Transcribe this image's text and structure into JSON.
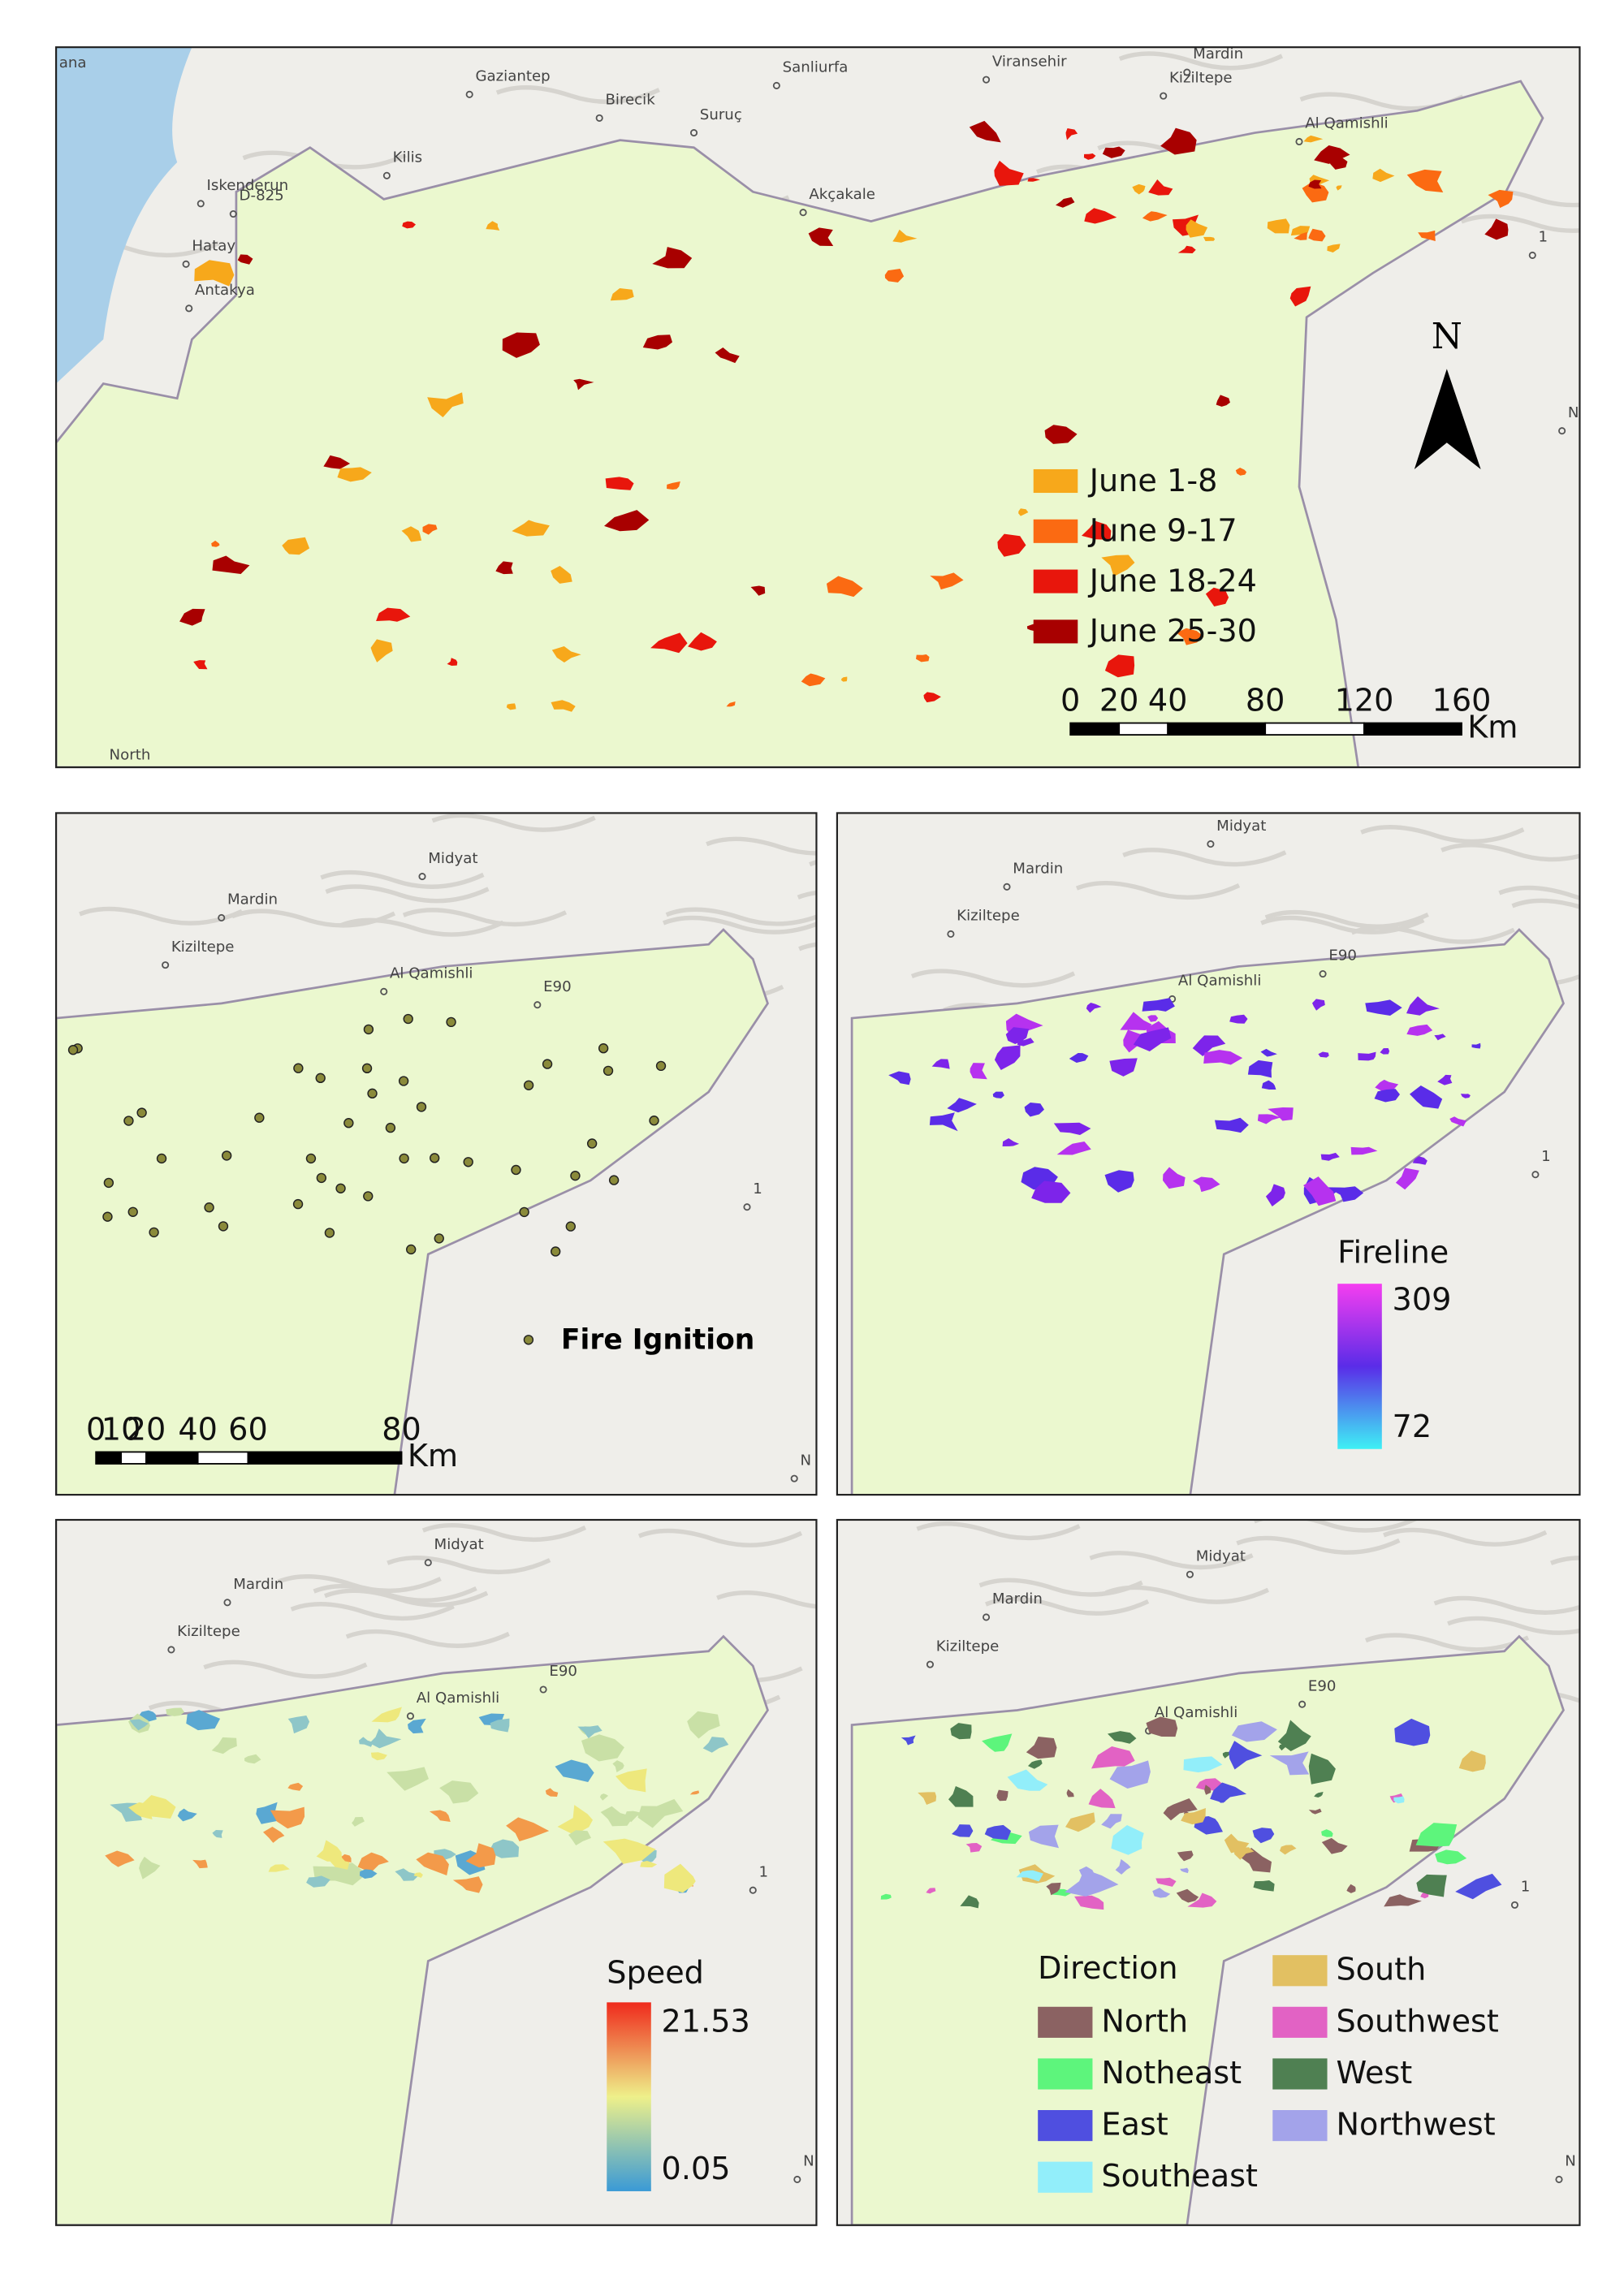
{
  "top_map": {
    "places": [
      "ana",
      "Gaziantep",
      "Birecik",
      "Suruç",
      "Sanliurfa",
      "Viransehir",
      "Mardin",
      "Kiziltepe",
      "Al Qamishli",
      "Kilis",
      "Iskenderun",
      "D-825",
      "Hatay",
      "Antakya",
      "Akçakale",
      "North",
      "1",
      "N"
    ],
    "legend": [
      {
        "label": "June 1-8",
        "color": "#f7a81b"
      },
      {
        "label": "June 9-17",
        "color": "#fb6a12"
      },
      {
        "label": "June 18-24",
        "color": "#e8160c"
      },
      {
        "label": "June 25-30",
        "color": "#a80000"
      }
    ],
    "north_label": "N",
    "scale_bar": {
      "ticks": [
        0,
        20,
        40,
        80,
        120,
        160
      ],
      "unit": "Km"
    }
  },
  "ignition_map": {
    "places": [
      "Midyat",
      "Mardin",
      "Kiziltepe",
      "Al Qamishli",
      "E90",
      "1",
      "N"
    ],
    "label": "Fire Ignition",
    "scale_bar": {
      "ticks": [
        0,
        10,
        20,
        40,
        60,
        80
      ],
      "unit": "Km"
    }
  },
  "fireline_map": {
    "places": [
      "Midyat",
      "Mardin",
      "Kiziltepe",
      "Al Qamishli",
      "E90",
      "1"
    ],
    "legend": {
      "title": "Fireline",
      "max": 309,
      "min": 72
    }
  },
  "speed_map": {
    "places": [
      "Midyat",
      "Mardin",
      "Kiziltepe",
      "Al Qamishli",
      "E90",
      "1",
      "N"
    ],
    "legend": {
      "title": "Speed",
      "max": 21.53,
      "min": 0.05
    }
  },
  "direction_map": {
    "places": [
      "Midyat",
      "Mardin",
      "Kiziltepe",
      "Al Qamishli",
      "E90",
      "1",
      "N"
    ],
    "legend": {
      "title": "Direction",
      "items": [
        {
          "label": "North",
          "color": "#8b6262"
        },
        {
          "label": "Notheast",
          "color": "#5df57c"
        },
        {
          "label": "East",
          "color": "#4f4fe0"
        },
        {
          "label": "Southeast",
          "color": "#92eefa"
        },
        {
          "label": "South",
          "color": "#e2c062"
        },
        {
          "label": "Southwest",
          "color": "#e262c4"
        },
        {
          "label": "West",
          "color": "#4f8052"
        },
        {
          "label": "Northwest",
          "color": "#a3a3ea"
        }
      ]
    }
  }
}
